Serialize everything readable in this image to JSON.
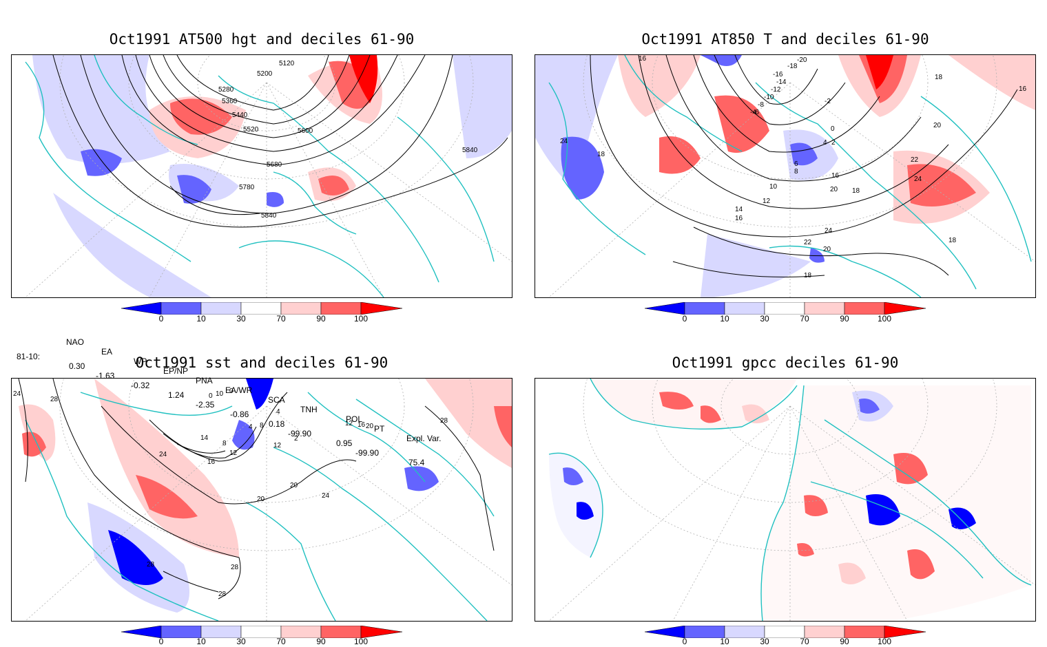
{
  "panels": [
    {
      "id": "p1",
      "title": "Oct1991 AT500 hgt and deciles 61-90",
      "contour_labels": [
        "5120",
        "5200",
        "5280",
        "5360",
        "5440",
        "5520",
        "5600",
        "5680",
        "5780",
        "5840",
        "5840"
      ]
    },
    {
      "id": "p2",
      "title": "Oct1991 AT850 T and deciles 61-90",
      "contour_labels": [
        "16",
        "-20",
        "-18",
        "-16",
        "-14",
        "-12",
        "-10",
        "-8",
        "-6",
        "-4",
        "-2",
        "0",
        "2",
        "4",
        "6",
        "8",
        "10",
        "12",
        "14",
        "16",
        "16",
        "18",
        "18",
        "18",
        "18",
        "20",
        "20",
        "20",
        "22",
        "22",
        "24",
        "24",
        "24",
        "16",
        "18"
      ]
    },
    {
      "id": "p3",
      "title": "Oct1991 sst and deciles 61-90",
      "contour_labels": [
        "24",
        "28",
        "0",
        "10",
        "4",
        "8",
        "4",
        "14",
        "8",
        "12",
        "16",
        "20",
        "20",
        "24",
        "24",
        "28",
        "28",
        "28",
        "12",
        "16",
        "20",
        "12",
        "2",
        "0",
        "28"
      ]
    },
    {
      "id": "p4",
      "title": "Oct1991 gpcc deciles 61-90",
      "contour_labels": []
    }
  ],
  "colorbar": {
    "labels": [
      "0",
      "10",
      "30",
      "70",
      "90",
      "100"
    ],
    "colors": [
      "#0000ff",
      "#6464ff",
      "#d8d8ff",
      "#ffffff",
      "#ffd0d0",
      "#ff6464",
      "#ff0000"
    ]
  },
  "indices": {
    "headers": [
      "NAO",
      "EA",
      "WP",
      "EP/NP",
      "PNA",
      "EA/WR",
      "SCA",
      "TNH",
      "POL",
      "PT",
      "Expl. Var."
    ],
    "row_label": "81-10:",
    "values": [
      "0.30",
      "-1.63",
      "-0.32",
      "1.24",
      "-2.35",
      "-0.86",
      "0.18",
      "-99.90",
      "0.95",
      "-99.90",
      "75.4"
    ]
  },
  "colors": {
    "coast": "#20c0c0",
    "contour": "#000000",
    "grid": "#a0a0a0"
  }
}
